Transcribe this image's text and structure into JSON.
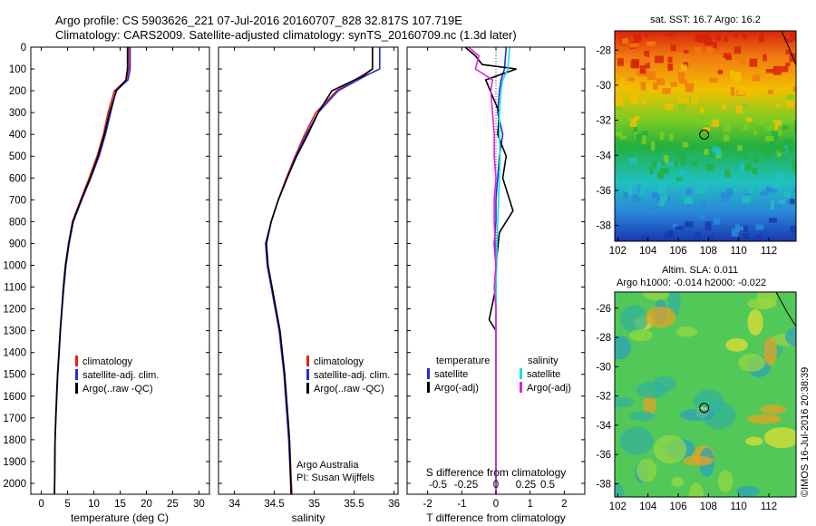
{
  "header": {
    "line1": "Argo profile: CS 5903626_221 07-Jul-2016 20160707_828 32.817S 107.719E",
    "line2": "Climatology: CARS2009. Satellite-adjusted climatology: synTS_20160709.nc (1.3d later)"
  },
  "colors": {
    "climatology": "#e4211b",
    "satellite": "#2230d8",
    "argo": "#000000",
    "satellite_salinity": "#22dede",
    "argo_salinity": "#e020e0"
  },
  "chart_data": [
    {
      "type": "line",
      "name": "temperature-profile",
      "xlabel": "temperature (deg C)",
      "xlim": [
        -2,
        32
      ],
      "xticks": [
        0,
        5,
        10,
        15,
        20,
        25,
        30
      ],
      "ylim": [
        0,
        2050
      ],
      "yticks": [
        0,
        100,
        200,
        300,
        400,
        500,
        600,
        700,
        800,
        900,
        1000,
        1100,
        1200,
        1300,
        1400,
        1500,
        1600,
        1700,
        1800,
        1900,
        2000
      ],
      "legend": [
        "climatology",
        "satellite-adj. clim.",
        "Argo(..raw -QC)"
      ],
      "series": [
        {
          "name": "climatology",
          "color_key": "climatology",
          "x": [
            16.6,
            16.6,
            16.2,
            13.9,
            12.7,
            11.8,
            10.6,
            9.1,
            7.5,
            5.9,
            5.2,
            4.6,
            4.2,
            3.9,
            3.6,
            3.35,
            3.1,
            2.9,
            2.75,
            2.6,
            2.5
          ],
          "y": [
            0,
            100,
            150,
            200,
            300,
            400,
            500,
            600,
            700,
            800,
            900,
            1000,
            1100,
            1200,
            1300,
            1400,
            1500,
            1600,
            1700,
            1800,
            2050
          ]
        },
        {
          "name": "satellite-adj. clim.",
          "color_key": "satellite",
          "x": [
            16.9,
            16.9,
            16.5,
            14.2,
            13.2,
            12.2,
            11.0,
            9.4,
            7.7,
            6.1,
            5.3,
            4.7,
            4.3,
            3.95,
            3.65,
            3.4,
            3.15,
            2.95,
            2.78,
            2.62,
            2.52
          ],
          "y": [
            0,
            100,
            150,
            200,
            300,
            400,
            500,
            600,
            700,
            800,
            900,
            1000,
            1100,
            1200,
            1300,
            1400,
            1500,
            1600,
            1700,
            1800,
            2050
          ]
        },
        {
          "name": "Argo(..raw -QC)",
          "color_key": "argo",
          "x": [
            16.4,
            16.4,
            16.1,
            14.3,
            13.0,
            12.0,
            10.8,
            9.3,
            7.6,
            6.0,
            5.2,
            4.6,
            4.2,
            3.9,
            3.6,
            3.35,
            3.1,
            2.9,
            2.75,
            2.6,
            2.5
          ],
          "y": [
            0,
            100,
            150,
            200,
            300,
            400,
            500,
            600,
            700,
            800,
            900,
            1000,
            1100,
            1200,
            1300,
            1400,
            1500,
            1600,
            1700,
            1800,
            2050
          ]
        }
      ]
    },
    {
      "type": "line",
      "name": "salinity-profile",
      "xlabel": "salinity",
      "xlim": [
        33.8,
        36.05
      ],
      "xticks": [
        34,
        34.5,
        35,
        35.5,
        36
      ],
      "ylim": [
        0,
        2050
      ],
      "legend": [
        "climatology",
        "satellite-adj. clim.",
        "Argo(..raw -QC)"
      ],
      "annotation": [
        "Argo Australia",
        "PI: Susan Wijffels"
      ],
      "series": [
        {
          "name": "climatology",
          "color_key": "climatology",
          "x": [
            35.73,
            35.73,
            35.6,
            35.28,
            35.02,
            34.88,
            34.76,
            34.65,
            34.55,
            34.46,
            34.4,
            34.42,
            34.47,
            34.52,
            34.57,
            34.6,
            34.63,
            34.65,
            34.67,
            34.69,
            34.72
          ],
          "y": [
            0,
            100,
            130,
            200,
            300,
            400,
            500,
            600,
            700,
            800,
            900,
            1000,
            1100,
            1200,
            1300,
            1400,
            1500,
            1600,
            1700,
            1800,
            2050
          ]
        },
        {
          "name": "satellite-adj. clim.",
          "color_key": "satellite",
          "x": [
            35.82,
            35.82,
            35.65,
            35.3,
            35.05,
            34.9,
            34.77,
            34.66,
            34.55,
            34.46,
            34.39,
            34.41,
            34.46,
            34.51,
            34.56,
            34.59,
            34.62,
            34.64,
            34.66,
            34.68,
            34.71
          ],
          "y": [
            0,
            100,
            130,
            200,
            300,
            400,
            500,
            600,
            700,
            800,
            900,
            1000,
            1100,
            1200,
            1300,
            1400,
            1500,
            1600,
            1700,
            1800,
            2050
          ]
        },
        {
          "name": "Argo(..raw -QC)",
          "color_key": "argo",
          "x": [
            35.73,
            35.73,
            35.73,
            35.62,
            35.45,
            35.22,
            35.05,
            34.92,
            34.78,
            34.66,
            34.55,
            34.46,
            34.4,
            34.42,
            34.47,
            34.52,
            34.57,
            34.6,
            34.63,
            34.65,
            34.67,
            34.69,
            34.71
          ],
          "y": [
            0,
            90,
            100,
            130,
            160,
            200,
            300,
            400,
            500,
            600,
            700,
            800,
            900,
            1000,
            1100,
            1200,
            1300,
            1400,
            1500,
            1600,
            1700,
            1800,
            2050
          ]
        }
      ]
    },
    {
      "type": "line",
      "name": "difference-profile",
      "xlabel": "T difference from climatology",
      "xlabel_top": "S difference from climatology",
      "xlim": [
        -2.6,
        2.6
      ],
      "xticks": [
        -2,
        -1,
        0,
        1,
        2
      ],
      "xticks_s": [
        -0.5,
        -0.25,
        0,
        0.25,
        0.5
      ],
      "ylim": [
        0,
        2050
      ],
      "legend_temperature": {
        "title": "temperature",
        "items": [
          "satellite",
          "Argo(-adj)"
        ]
      },
      "legend_salinity": {
        "title": "salinity",
        "items": [
          "satellite",
          "Argo(-adj)"
        ]
      },
      "series": [
        {
          "name": "temperature satellite",
          "color_key": "satellite",
          "x": [
            0.3,
            0.25,
            0.15,
            0.1,
            0.05,
            0.2,
            0.1,
            0.05,
            0.0,
            0.0,
            -0.05,
            0.0,
            0.0,
            0.0,
            0.0,
            0.0,
            0.0,
            0.0,
            0.0,
            0.0,
            0.0
          ],
          "y": [
            0,
            100,
            150,
            200,
            300,
            400,
            500,
            600,
            700,
            800,
            900,
            1000,
            1100,
            1200,
            1300,
            1400,
            1500,
            1600,
            1700,
            1800,
            2050
          ]
        },
        {
          "name": "temperature Argo(-adj)",
          "color_key": "argo",
          "x": [
            -0.9,
            -0.6,
            -0.4,
            0.6,
            -0.3,
            0.1,
            0.05,
            0.3,
            0.2,
            0.5,
            0.1,
            0.0,
            0.0,
            -0.2,
            0.0,
            0.0,
            0.0,
            0.0,
            0.0,
            0.0,
            0.0
          ],
          "y": [
            0,
            40,
            80,
            100,
            150,
            300,
            400,
            500,
            600,
            750,
            850,
            1000,
            1100,
            1250,
            1300,
            1400,
            1500,
            1600,
            1700,
            1800,
            2050
          ]
        },
        {
          "name": "salinity satellite",
          "color_key": "satellite_salinity",
          "x": [
            0.4,
            0.35,
            0.2,
            0.15,
            0.1,
            0.1,
            0.12,
            0.1,
            0.08,
            0.05,
            0.03,
            0.02,
            0.0,
            0.0,
            0.0,
            0.0,
            0.0,
            0.0,
            0.0,
            0.0,
            0.0
          ],
          "y": [
            0,
            100,
            150,
            200,
            300,
            400,
            500,
            600,
            700,
            800,
            900,
            1000,
            1100,
            1200,
            1300,
            1400,
            1500,
            1600,
            1700,
            1800,
            2050
          ]
        },
        {
          "name": "salinity Argo(-adj)",
          "color_key": "argo_salinity",
          "x": [
            -0.8,
            -0.5,
            -0.6,
            -0.1,
            -0.15,
            -0.1,
            -0.05,
            -0.05,
            0.0,
            -0.05,
            -0.05,
            -0.02,
            0.0,
            -0.05,
            0.0,
            0.0,
            0.0,
            0.0,
            0.0,
            0.0,
            0.0
          ],
          "y": [
            0,
            40,
            100,
            150,
            200,
            300,
            400,
            500,
            600,
            700,
            800,
            900,
            1000,
            1100,
            1200,
            1300,
            1400,
            1500,
            1600,
            1700,
            2050
          ]
        }
      ]
    },
    {
      "type": "heatmap",
      "name": "sst-map",
      "title": "sat. SST: 16.7  Argo: 16.2",
      "xlim": [
        101.8,
        113.8
      ],
      "ylim": [
        -38.9,
        -26.9
      ],
      "xticks": [
        102,
        104,
        106,
        108,
        110,
        112
      ],
      "yticks": [
        -28,
        -30,
        -32,
        -34,
        -36,
        -38
      ],
      "marker": {
        "lon": 107.719,
        "lat": -32.817
      }
    },
    {
      "type": "heatmap",
      "name": "sla-map",
      "title": "Altim. SLA: 0.011",
      "subtitle": "Argo h1000: -0.014 h2000: -0.022",
      "xlim": [
        101.8,
        113.8
      ],
      "ylim": [
        -38.9,
        -24.9
      ],
      "xticks": [
        102,
        104,
        106,
        108,
        110,
        112
      ],
      "yticks": [
        -26,
        -28,
        -30,
        -32,
        -34,
        -36,
        -38
      ],
      "marker": {
        "lon": 107.719,
        "lat": -32.817
      }
    }
  ],
  "footer": {
    "stamp": "©IMOS 16-Jul-2016 20:38:39"
  }
}
